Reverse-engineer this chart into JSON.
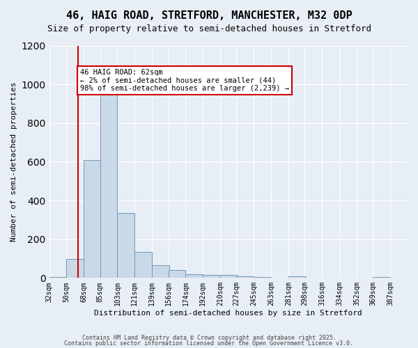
{
  "title_line1": "46, HAIG ROAD, STRETFORD, MANCHESTER, M32 0DP",
  "title_line2": "Size of property relative to semi-detached houses in Stretford",
  "xlabel": "Distribution of semi-detached houses by size in Stretford",
  "ylabel": "Number of semi-detached properties",
  "bin_labels": [
    "32sqm",
    "50sqm",
    "68sqm",
    "85sqm",
    "103sqm",
    "121sqm",
    "139sqm",
    "156sqm",
    "174sqm",
    "192sqm",
    "210sqm",
    "227sqm",
    "245sqm",
    "263sqm",
    "281sqm",
    "298sqm",
    "316sqm",
    "334sqm",
    "352sqm",
    "369sqm",
    "387sqm"
  ],
  "bin_edges": [
    32,
    50,
    68,
    85,
    103,
    121,
    139,
    156,
    174,
    192,
    210,
    227,
    245,
    263,
    281,
    298,
    316,
    334,
    352,
    369,
    387
  ],
  "bar_heights": [
    5,
    100,
    610,
    960,
    335,
    135,
    65,
    42,
    18,
    15,
    15,
    8,
    5,
    0,
    8,
    0,
    0,
    0,
    0,
    5
  ],
  "bar_color": "#c9d9e8",
  "bar_edge_color": "#7098b8",
  "property_size": 62,
  "property_label": "46 HAIG ROAD: 62sqm",
  "pct_smaller": 2,
  "count_smaller": 44,
  "pct_larger": 98,
  "count_larger": 2239,
  "annotation_box_color": "#ffffff",
  "annotation_box_edge": "#cc0000",
  "vline_color": "#cc0000",
  "ylim": [
    0,
    1200
  ],
  "yticks": [
    0,
    200,
    400,
    600,
    800,
    1000,
    1200
  ],
  "background_color": "#e8eef5",
  "plot_background": "#e8eef5",
  "grid_color": "#ffffff",
  "footer_line1": "Contains HM Land Registry data © Crown copyright and database right 2025.",
  "footer_line2": "Contains public sector information licensed under the Open Government Licence v3.0."
}
